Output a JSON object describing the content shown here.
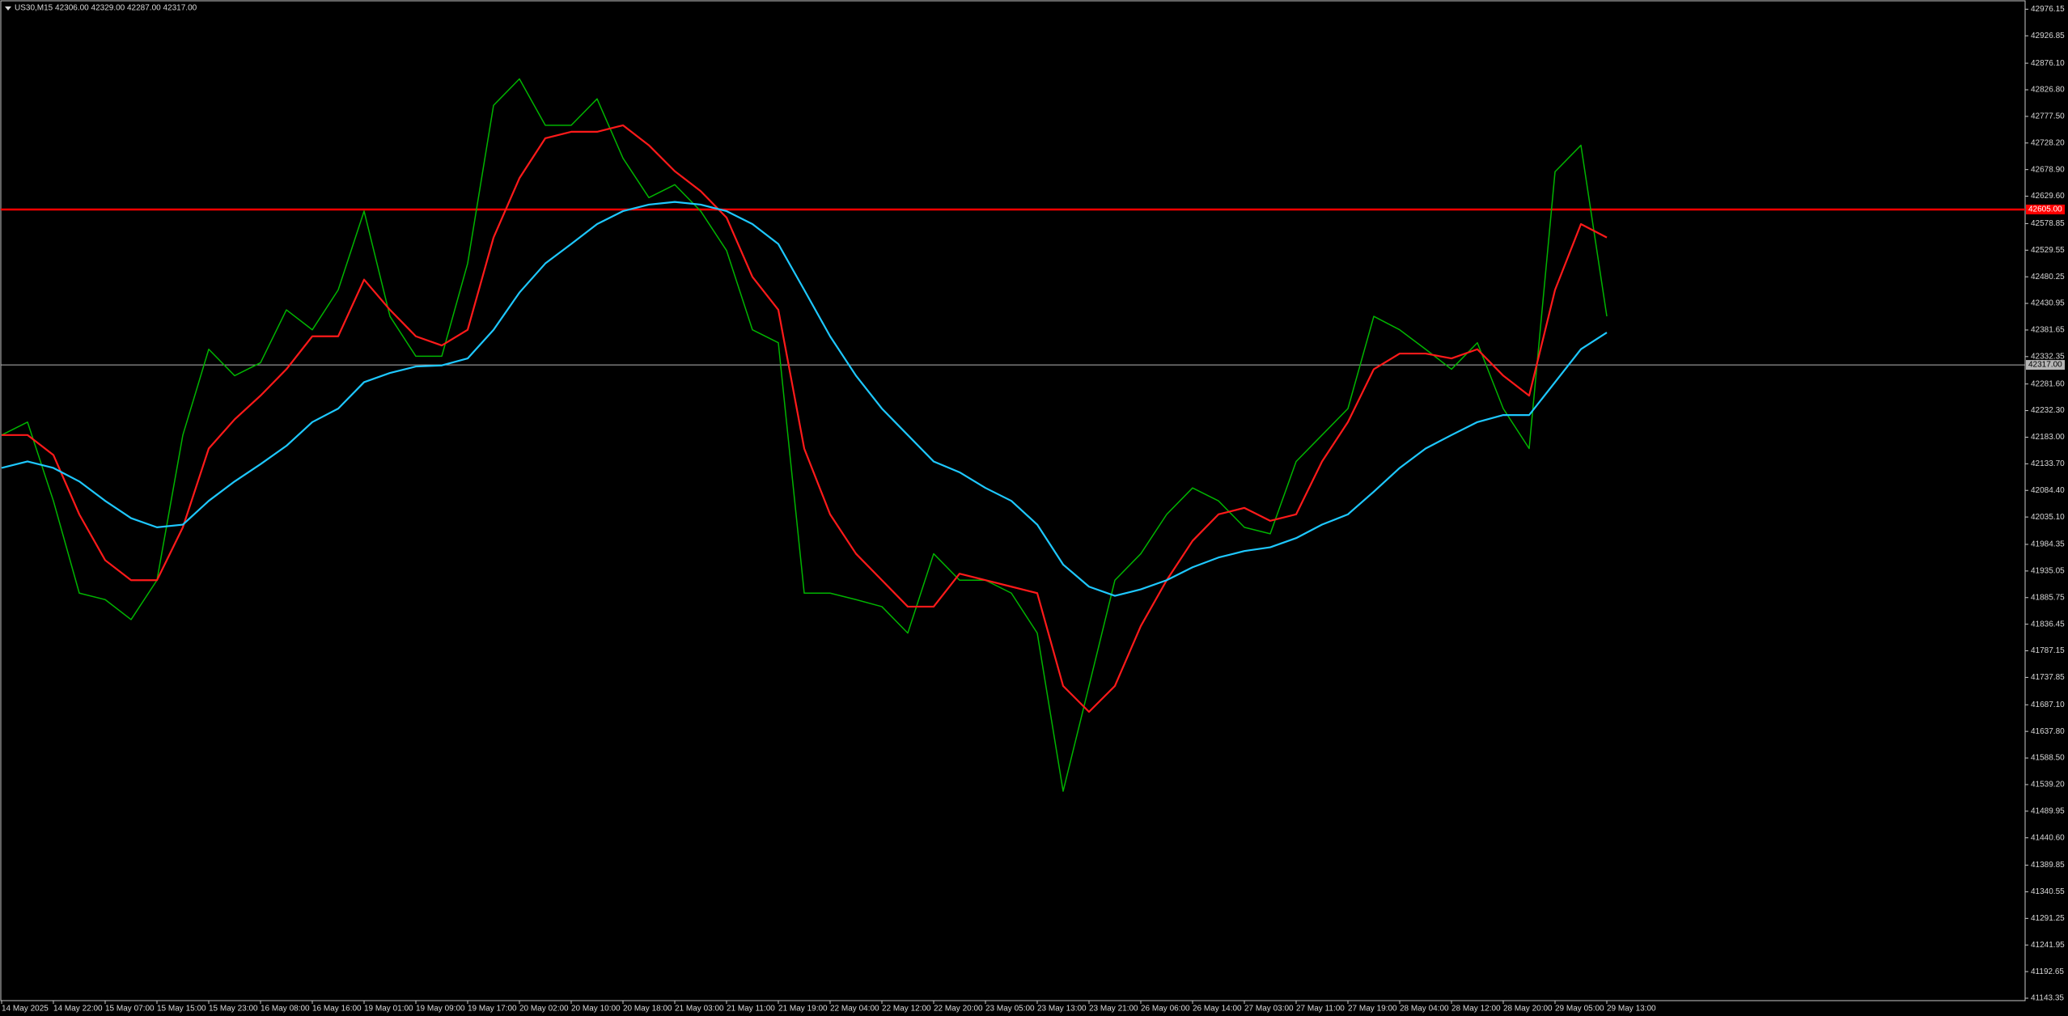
{
  "chart_data": {
    "type": "line",
    "title": "US30,M15  42306.00 42329.00 42287.00 42317.00",
    "categories": [
      "14 May 2025",
      null,
      "14 May 22:00",
      null,
      "15 May 07:00",
      null,
      "15 May 15:00",
      null,
      "15 May 23:00",
      null,
      "16 May 08:00",
      null,
      "16 May 16:00",
      null,
      "19 May 01:00",
      null,
      "19 May 09:00",
      null,
      "19 May 17:00",
      null,
      "20 May 02:00",
      null,
      "20 May 10:00",
      null,
      "20 May 18:00",
      null,
      "21 May 03:00",
      null,
      "21 May 11:00",
      null,
      "21 May 19:00",
      null,
      "22 May 04:00",
      null,
      "22 May 12:00",
      null,
      "22 May 20:00",
      null,
      "23 May 05:00",
      null,
      "23 May 13:00",
      null,
      "23 May 21:00",
      null,
      "26 May 06:00",
      null,
      "26 May 14:00",
      null,
      "27 May 03:00",
      null,
      "27 May 11:00",
      null,
      "27 May 19:00",
      null,
      "28 May 04:00",
      null,
      "28 May 12:00",
      null,
      "28 May 20:00",
      null,
      "29 May 05:00",
      null,
      "29 May 13:00"
    ],
    "series": [
      {
        "color": "#00b400",
        "values": [
          42187,
          42211,
          42065,
          41894,
          41882,
          41845,
          41918,
          42187,
          42346,
          42297,
          42321,
          42419,
          42382,
          42456,
          42602,
          42407,
          42333,
          42333,
          42505,
          42798,
          42847,
          42761,
          42761,
          42810,
          42700,
          42627,
          42651,
          42602,
          42529,
          42382,
          42358,
          41894,
          41894,
          41882,
          41869,
          41820,
          41967,
          41918,
          41918,
          41894,
          41820,
          41527,
          41722,
          41918,
          41967,
          42040,
          42089,
          42065,
          42016,
          42004,
          42138,
          42187,
          42236,
          42407,
          42382,
          42346,
          42309,
          42358,
          42236,
          42162,
          42675,
          42724,
          42407
        ]
      },
      {
        "color": "#ff1a1a",
        "values": [
          42187,
          42187,
          42150,
          42040,
          41955,
          41918,
          41918,
          42016,
          42162,
          42216,
          42260,
          42309,
          42370,
          42370,
          42475,
          42419,
          42370,
          42353,
          42382,
          42553,
          42663,
          42737,
          42749,
          42749,
          42761,
          42724,
          42676,
          42639,
          42590,
          42480,
          42419,
          42162,
          42040,
          41967,
          41918,
          41869,
          41869,
          41930,
          41918,
          41906,
          41894,
          41722,
          41674,
          41722,
          41833,
          41918,
          41991,
          42040,
          42052,
          42028,
          42040,
          42138,
          42211,
          42309,
          42338,
          42338,
          42329,
          42346,
          42297,
          42260,
          42456,
          42578,
          42553
        ]
      },
      {
        "color": "#1ec8ff",
        "values": [
          42126,
          42138,
          42126,
          42101,
          42065,
          42033,
          42016,
          42021,
          42065,
          42101,
          42133,
          42167,
          42211,
          42236,
          42285,
          42302,
          42314,
          42316,
          42329,
          42382,
          42451,
          42505,
          42541,
          42578,
          42602,
          42614,
          42619,
          42614,
          42602,
          42578,
          42541,
          42456,
          42370,
          42297,
          42236,
          42187,
          42138,
          42118,
          42089,
          42065,
          42021,
          41947,
          41906,
          41889,
          41901,
          41918,
          41942,
          41960,
          41972,
          41979,
          41996,
          42021,
          42040,
          42082,
          42126,
          42162,
          42187,
          42211,
          42224,
          42224,
          42285,
          42346,
          42377
        ]
      }
    ],
    "hlines": [
      {
        "value": 42605,
        "label": "42605.00",
        "color": "#ff0000"
      },
      {
        "value": 42317,
        "label": "42317.00",
        "color": "#b4b4b4"
      }
    ],
    "ylim": [
      41138.85,
      42993.2
    ],
    "yticks": [
      42976.15,
      42926.85,
      {
        "value": 42876.1,
        "label": "42876.10"
      },
      {
        "value": 42826.8,
        "label": "42826.80"
      },
      {
        "value": 42777.5,
        "label": "42777.50"
      },
      {
        "value": 42728.2,
        "label": "42728.20"
      },
      {
        "value": 42678.9,
        "label": "42678.90"
      },
      {
        "value": 42629.6,
        "label": "42629.60"
      },
      42578.85,
      42529.55,
      42480.25,
      42430.95,
      42381.65,
      42332.35,
      {
        "value": 42281.6,
        "label": "42281.60"
      },
      {
        "value": 42232.3,
        "label": "42232.30"
      },
      {
        "value": 42183,
        "label": "42183.00"
      },
      {
        "value": 42133.7,
        "label": "42133.70"
      },
      {
        "value": 42084.4,
        "label": "42084.40"
      },
      {
        "value": 42035.1,
        "label": "42035.10"
      },
      41984.35,
      41935.05,
      41885.75,
      41836.45,
      41787.15,
      41737.85,
      {
        "value": 41687.1,
        "label": "41687.10"
      },
      {
        "value": 41637.8,
        "label": "41637.80"
      },
      {
        "value": 41588.5,
        "label": "41588.50"
      },
      {
        "value": 41539.2,
        "label": "41539.20"
      },
      41489.95,
      {
        "value": 41440.6,
        "label": "41440.60"
      },
      41389.85,
      41340.55,
      41291.25,
      41241.95,
      41192.65,
      41143.35
    ],
    "grid": false
  }
}
